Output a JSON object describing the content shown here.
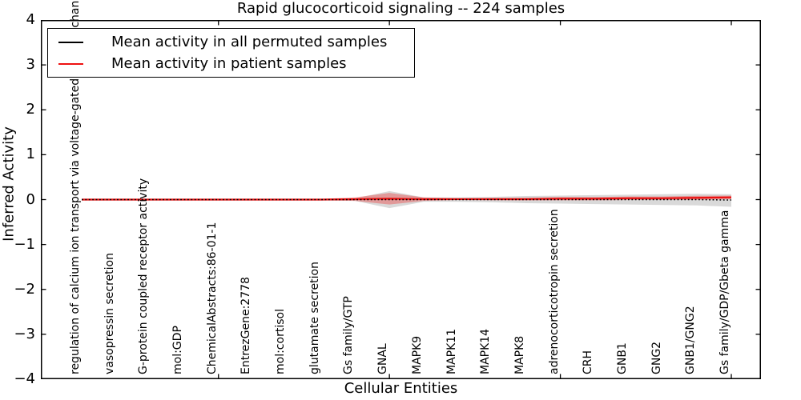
{
  "title": "Rapid glucocorticoid signaling -- 224 samples",
  "legend": {
    "items": [
      {
        "label": "Mean activity in all permuted samples",
        "color": "#000000"
      },
      {
        "label": "Mean activity in patient samples",
        "color": "#ee1111"
      }
    ],
    "position": "upper-left"
  },
  "chart_data": {
    "type": "line",
    "title": "Rapid glucocorticoid signaling -- 224 samples",
    "xlabel": "Cellular Entities",
    "ylabel": "Inferred Activity",
    "ylim": [
      -4,
      4
    ],
    "yticks": [
      4,
      3,
      2,
      1,
      0,
      -1,
      -2,
      -3,
      -4
    ],
    "xticks_at": [
      5,
      10,
      15,
      20
    ],
    "grid": false,
    "categories": [
      "regulation of calcium ion transport via voltage-gated calcium channel",
      "vasopressin secretion",
      "G-protein coupled receptor activity",
      "mol:GDP",
      "ChemicalAbstracts:86-01-1",
      "EntrezGene:2778",
      "mol:cortisol",
      "glutamate secretion",
      "Gs family/GTP",
      "GNAL",
      "MAPK9",
      "MAPK11",
      "MAPK14",
      "MAPK8",
      "adrenocorticotropin secretion",
      "CRH",
      "GNB1",
      "GNG2",
      "GNB1/GNG2",
      "Gs family/GDP/Gbeta gamma"
    ],
    "series": [
      {
        "name": "Mean activity in all permuted samples",
        "color": "#000000",
        "linestyle": "dotted",
        "values": [
          0,
          0,
          0,
          0,
          0,
          0,
          0,
          0,
          0,
          0,
          0,
          0,
          0,
          0,
          0,
          0,
          0,
          0,
          0,
          -0.01
        ]
      },
      {
        "name": "Mean activity in patient samples",
        "color": "#ee1111",
        "linestyle": "solid",
        "values": [
          0,
          0,
          0,
          0,
          0,
          0,
          0,
          0,
          0.01,
          0.02,
          0.01,
          0.01,
          0.01,
          0.01,
          0.02,
          0.02,
          0.03,
          0.03,
          0.04,
          0.05
        ]
      }
    ],
    "bands": [
      {
        "name": "permuted samples spread",
        "color": "#888888",
        "opacity": 0.32,
        "upper": [
          0.02,
          0.02,
          0.02,
          0.02,
          0.02,
          0.02,
          0.02,
          0.02,
          0.03,
          0.19,
          0.05,
          0.05,
          0.06,
          0.08,
          0.09,
          0.1,
          0.11,
          0.12,
          0.13,
          0.12
        ],
        "lower": [
          -0.02,
          -0.02,
          -0.02,
          -0.02,
          -0.02,
          -0.02,
          -0.02,
          -0.02,
          -0.03,
          -0.19,
          -0.05,
          -0.05,
          -0.06,
          -0.08,
          -0.09,
          -0.1,
          -0.11,
          -0.12,
          -0.13,
          -0.16
        ]
      },
      {
        "name": "patient samples spread",
        "color": "#ee3333",
        "opacity": 0.38,
        "upper": [
          0.015,
          0.015,
          0.015,
          0.015,
          0.015,
          0.015,
          0.015,
          0.015,
          0.05,
          0.15,
          0.05,
          0.03,
          0.035,
          0.04,
          0.055,
          0.055,
          0.07,
          0.07,
          0.085,
          0.09
        ],
        "lower": [
          -0.015,
          -0.015,
          -0.015,
          -0.015,
          -0.015,
          -0.015,
          -0.015,
          -0.015,
          -0.03,
          -0.11,
          -0.03,
          -0.01,
          -0.015,
          -0.02,
          -0.015,
          -0.015,
          -0.01,
          -0.01,
          -0.005,
          0.01
        ]
      }
    ]
  }
}
